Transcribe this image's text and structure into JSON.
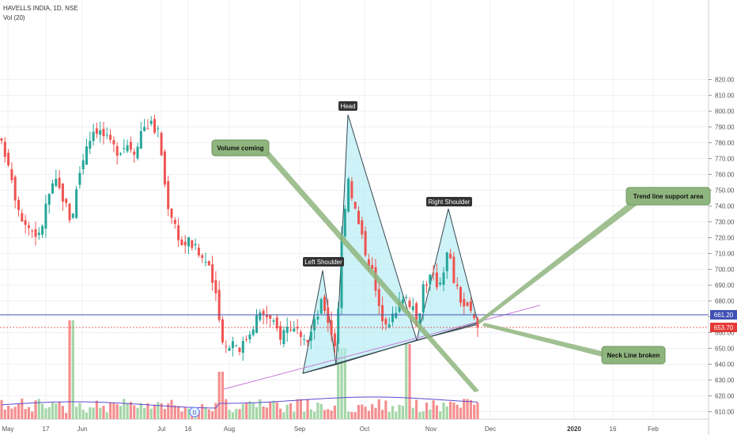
{
  "header": {
    "symbol_line": "HAVELLS INDIA, 1D, NSE",
    "volume_line": "Vol (20)"
  },
  "chart_data": {
    "type": "candlestick",
    "symbol": "HAVELLS INDIA",
    "interval": "1D",
    "exchange": "NSE",
    "ylim": [
      605,
      822
    ],
    "yticks": [
      610,
      620,
      630,
      640,
      650,
      660,
      670,
      680,
      690,
      700,
      710,
      720,
      730,
      740,
      750,
      760,
      770,
      780,
      790,
      800,
      810,
      820
    ],
    "x_labels": [
      "May",
      "17",
      "Jun",
      "Jul",
      "16",
      "Aug",
      "Sep",
      "Oct",
      "Nov",
      "Dec",
      "2020",
      "16",
      "Feb"
    ],
    "price_tags": [
      {
        "value": 661.2,
        "label": "661.20",
        "color": "#3f51b5"
      },
      {
        "value": 653.7,
        "label": "653.70",
        "color": "#e53935"
      }
    ],
    "pattern_labels": [
      "Left Shoulder",
      "Head",
      "Right Shoulder"
    ],
    "annotations": [
      "Volume coming",
      "Trend line support area",
      "Neck Line broken"
    ],
    "pattern_points": [
      {
        "date": "Sep",
        "price": 630
      },
      {
        "date": "Sep",
        "price": 685
      },
      {
        "date": "Sep",
        "price": 643
      },
      {
        "date": "Sep",
        "price": 769
      },
      {
        "date": "Oct",
        "price": 648
      },
      {
        "date": "Nov",
        "price": 718
      },
      {
        "date": "Nov",
        "price": 655
      }
    ],
    "colors": {
      "up": "#26a69a",
      "down": "#ef5350",
      "vol_up": "#a5d6a7",
      "vol_down": "#f48f8f",
      "vol_ma": "#5c4bd1",
      "pattern_fill": "#b2ebf2",
      "trendline": "#c879d9",
      "callout": "#8fb57e"
    },
    "note_marker": "D"
  }
}
